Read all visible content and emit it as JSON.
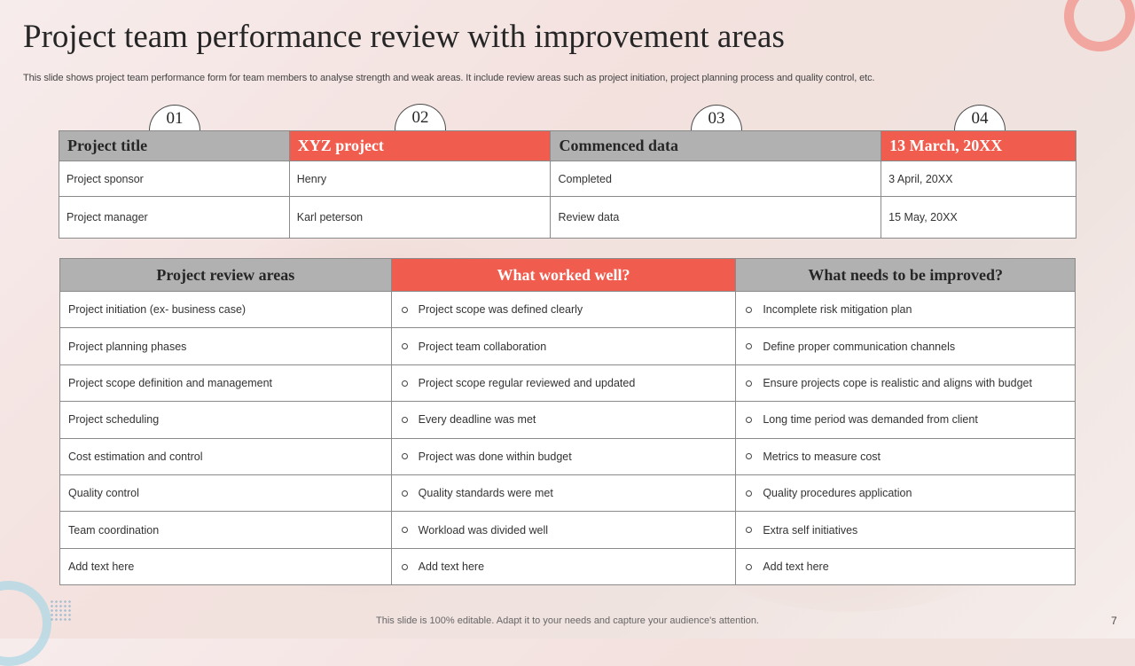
{
  "title": "Project team performance review with improvement areas",
  "subtitle": "This slide shows project team performance form for team members to analyse strength and weak areas. It include review areas such as project initiation, project planning process and quality control, etc.",
  "steps": [
    "01",
    "02",
    "03",
    "04"
  ],
  "details": {
    "header": [
      "Project title",
      "XYZ project",
      "Commenced data",
      "13 March, 20XX"
    ],
    "rows": [
      [
        "Project sponsor",
        "Henry",
        "Completed",
        "3 April, 20XX"
      ],
      [
        "Project manager",
        "Karl peterson",
        "Review  data",
        "15 May, 20XX"
      ]
    ]
  },
  "review": {
    "headers": [
      "Project review areas",
      "What worked well?",
      "What needs to be improved?"
    ],
    "rows": [
      [
        "Project initiation (ex- business case)",
        "Project scope was defined clearly",
        "Incomplete risk mitigation plan"
      ],
      [
        "Project planning  phases",
        "Project team collaboration",
        "Define  proper  communication channels"
      ],
      [
        "Project scope definition  and management",
        "Project scope  regular  reviewed   and updated",
        "Ensure projects cope is realistic and aligns with budget"
      ],
      [
        "Project scheduling",
        "Every  deadline was met",
        "Long time period was demanded  from client"
      ],
      [
        "Cost estimation and control",
        "Project was done within budget",
        "Metrics to measure  cost"
      ],
      [
        "Quality control",
        "Quality standards  were  met",
        "Quality procedures  application"
      ],
      [
        "Team  coordination",
        "Workload  was divided  well",
        "Extra self initiatives"
      ],
      [
        "Add text here",
        "Add text here",
        "Add text here"
      ]
    ]
  },
  "footer": "This slide is 100% editable. Adapt it to your needs and capture your audience's attention.",
  "page_number": "7",
  "colors": {
    "accent": "#f05d4e",
    "header_grey": "#b1b1b1"
  }
}
